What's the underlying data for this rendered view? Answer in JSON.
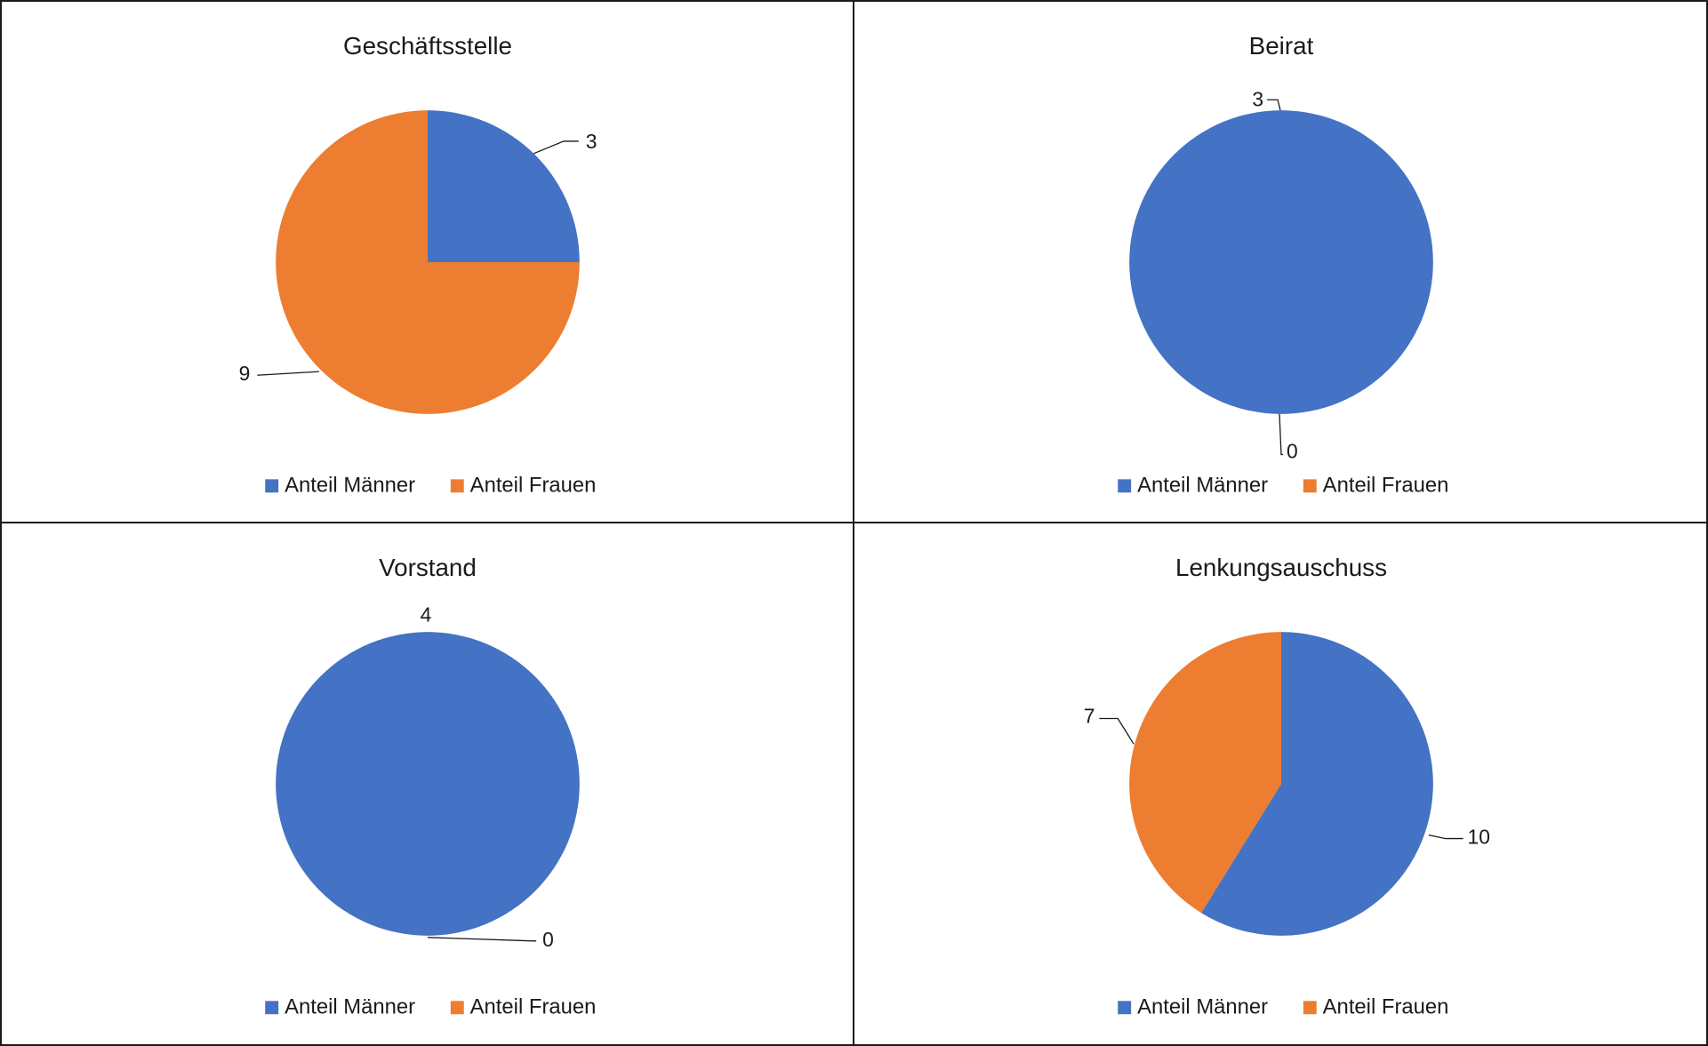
{
  "chart_data": [
    {
      "type": "pie",
      "title": "Geschäftsstelle",
      "categories": [
        "Anteil Männer",
        "Anteil Frauen"
      ],
      "values": [
        3,
        9
      ],
      "colors": [
        "#4472C4",
        "#ED7D31"
      ],
      "legend_position": "bottom"
    },
    {
      "type": "pie",
      "title": "Beirat",
      "categories": [
        "Anteil Männer",
        "Anteil Frauen"
      ],
      "values": [
        3,
        0
      ],
      "colors": [
        "#4472C4",
        "#ED7D31"
      ],
      "legend_position": "bottom"
    },
    {
      "type": "pie",
      "title": "Vorstand",
      "categories": [
        "Anteil Männer",
        "Anteil Frauen"
      ],
      "values": [
        4,
        0
      ],
      "colors": [
        "#4472C4",
        "#ED7D31"
      ],
      "legend_position": "bottom"
    },
    {
      "type": "pie",
      "title": "Lenkungsauschuss",
      "categories": [
        "Anteil Männer",
        "Anteil Frauen"
      ],
      "values": [
        10,
        7
      ],
      "colors": [
        "#4472C4",
        "#ED7D31"
      ],
      "legend_position": "bottom"
    }
  ]
}
